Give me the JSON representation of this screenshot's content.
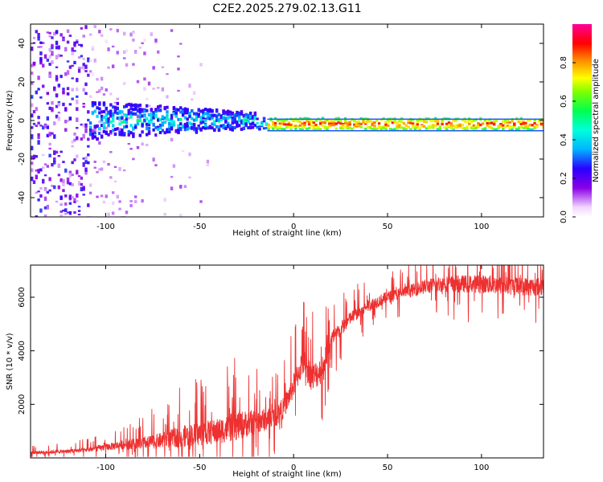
{
  "title": "C2E2.2025.279.02.13.G11",
  "chart_data": [
    {
      "type": "heatmap",
      "xlabel": "Height of straight line (km)",
      "ylabel": "Frequency (Hz)",
      "xlim": [
        -140,
        133
      ],
      "ylim": [
        -50,
        50
      ],
      "xticks": [
        -100,
        -50,
        0,
        50,
        100
      ],
      "yticks": [
        -40,
        -20,
        0,
        20,
        40
      ],
      "colorbar": {
        "label": "Normalized spectral amplitude",
        "range": [
          0,
          1
        ],
        "ticks": [
          "0.0",
          "0.2",
          "0.4",
          "0.6",
          "0.8"
        ],
        "colormap": "rainbow (white-purple-blue-cyan-green-yellow-red-magenta)"
      },
      "features": {
        "noise_region_below_km": -110,
        "tone_frequency_hz": -2,
        "tone_strong_from_km": -15
      }
    },
    {
      "type": "line",
      "xlabel": "Height of straight line (km)",
      "ylabel": "SNR (10 * v/v)",
      "xlim": [
        -140,
        133
      ],
      "ylim": [
        0,
        7200
      ],
      "xticks": [
        -100,
        -50,
        0,
        50,
        100
      ],
      "yticks": [
        2000,
        4000,
        6000
      ],
      "series": [
        {
          "color": "#ee3030",
          "x": [
            -140,
            -130,
            -120,
            -110,
            -100,
            -90,
            -80,
            -70,
            -60,
            -50,
            -40,
            -30,
            -20,
            -10,
            -5,
            0,
            5,
            10,
            15,
            20,
            30,
            40,
            50,
            60,
            70,
            80,
            90,
            100,
            110,
            120,
            133
          ],
          "y": [
            200,
            220,
            250,
            300,
            400,
            500,
            550,
            650,
            800,
            900,
            1000,
            1200,
            1350,
            1500,
            1900,
            2700,
            3600,
            3000,
            3300,
            4400,
            5200,
            5700,
            6000,
            6200,
            6400,
            6500,
            6500,
            6500,
            6450,
            6400,
            6400
          ],
          "noise_amplitude": [
            120,
            130,
            150,
            180,
            250,
            350,
            450,
            600,
            800,
            900,
            950,
            1100,
            900,
            800,
            800,
            900,
            1000,
            1100,
            1000,
            700,
            500,
            450,
            450,
            450,
            550,
            600,
            650,
            700,
            700,
            700,
            700
          ]
        }
      ]
    }
  ]
}
